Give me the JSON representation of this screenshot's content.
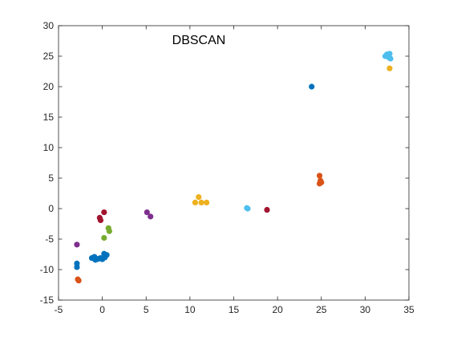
{
  "chart_data": {
    "type": "scatter",
    "title": "DBSCAN",
    "xlabel": "",
    "ylabel": "",
    "xlim": [
      -5,
      35
    ],
    "ylim": [
      -15,
      30
    ],
    "xticks": [
      -5,
      0,
      5,
      10,
      15,
      20,
      25,
      30,
      35
    ],
    "yticks": [
      -15,
      -10,
      -5,
      0,
      5,
      10,
      15,
      20,
      25,
      30
    ],
    "grid": false,
    "series": [
      {
        "color": "#0072BD",
        "points": [
          [
            -2.9,
            -9.0
          ],
          [
            -2.9,
            -9.6
          ],
          [
            -1.2,
            -8.1
          ],
          [
            -0.9,
            -7.9
          ],
          [
            -0.8,
            -8.4
          ],
          [
            -0.6,
            -8.3
          ],
          [
            -0.4,
            -8.2
          ],
          [
            -0.2,
            -8.1
          ],
          [
            0.0,
            -8.3
          ],
          [
            0.2,
            -7.4
          ],
          [
            0.3,
            -8.0
          ],
          [
            0.5,
            -7.6
          ],
          [
            23.9,
            20.0
          ]
        ]
      },
      {
        "color": "#D95319",
        "points": [
          [
            -2.8,
            -11.6
          ],
          [
            -2.7,
            -11.8
          ],
          [
            24.8,
            5.4
          ],
          [
            24.8,
            4.1
          ],
          [
            24.9,
            4.6
          ],
          [
            25.0,
            4.3
          ]
        ]
      },
      {
        "color": "#EDB120",
        "points": [
          [
            10.6,
            1.0
          ],
          [
            11.0,
            1.9
          ],
          [
            11.3,
            1.0
          ],
          [
            11.9,
            1.0
          ],
          [
            32.8,
            23.0
          ]
        ]
      },
      {
        "color": "#7E2F8E",
        "points": [
          [
            -2.9,
            -5.9
          ],
          [
            5.1,
            -0.6
          ],
          [
            5.5,
            -1.3
          ]
        ]
      },
      {
        "color": "#77AC30",
        "points": [
          [
            0.2,
            -4.8
          ],
          [
            0.7,
            -3.2
          ],
          [
            0.8,
            -3.7
          ]
        ]
      },
      {
        "color": "#4DBEEE",
        "points": [
          [
            16.5,
            0.1
          ],
          [
            16.6,
            0.0
          ],
          [
            32.3,
            25.0
          ],
          [
            32.5,
            25.3
          ],
          [
            32.7,
            24.8
          ],
          [
            32.8,
            25.4
          ],
          [
            32.9,
            24.6
          ]
        ]
      },
      {
        "color": "#A2142F",
        "points": [
          [
            -0.3,
            -1.5
          ],
          [
            -0.2,
            -1.9
          ],
          [
            0.2,
            -0.6
          ],
          [
            18.8,
            -0.2
          ]
        ]
      }
    ]
  }
}
